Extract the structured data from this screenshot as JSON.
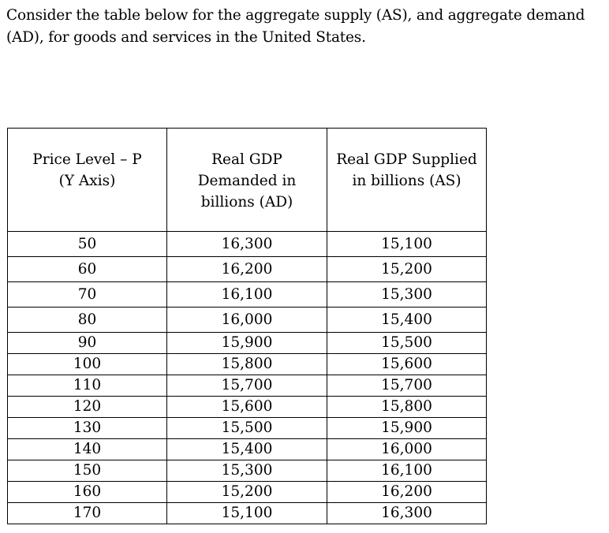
{
  "intro": "Consider the table below for the aggregate supply (AS), and aggregate demand (AD), for goods and services in the United States.",
  "table": {
    "headers": [
      [
        "Price Level – P",
        "(Y Axis)"
      ],
      [
        "Real GDP",
        "Demanded in",
        "billions (AD)"
      ],
      [
        "Real GDP Supplied",
        "in billions (AS)"
      ]
    ],
    "rows": [
      [
        "50",
        "16,300",
        "15,100"
      ],
      [
        "60",
        "16,200",
        "15,200"
      ],
      [
        "70",
        "16,100",
        "15,300"
      ],
      [
        "80",
        "16,000",
        "15,400"
      ],
      [
        "90",
        "15,900",
        "15,500"
      ],
      [
        "100",
        "15,800",
        "15,600"
      ],
      [
        "110",
        "15,700",
        "15,700"
      ],
      [
        "120",
        "15,600",
        "15,800"
      ],
      [
        "130",
        "15,500",
        "15,900"
      ],
      [
        "140",
        "15,400",
        "16,000"
      ],
      [
        "150",
        "15,300",
        "16,100"
      ],
      [
        "160",
        "15,200",
        "16,200"
      ],
      [
        "170",
        "15,100",
        "16,300"
      ]
    ]
  }
}
